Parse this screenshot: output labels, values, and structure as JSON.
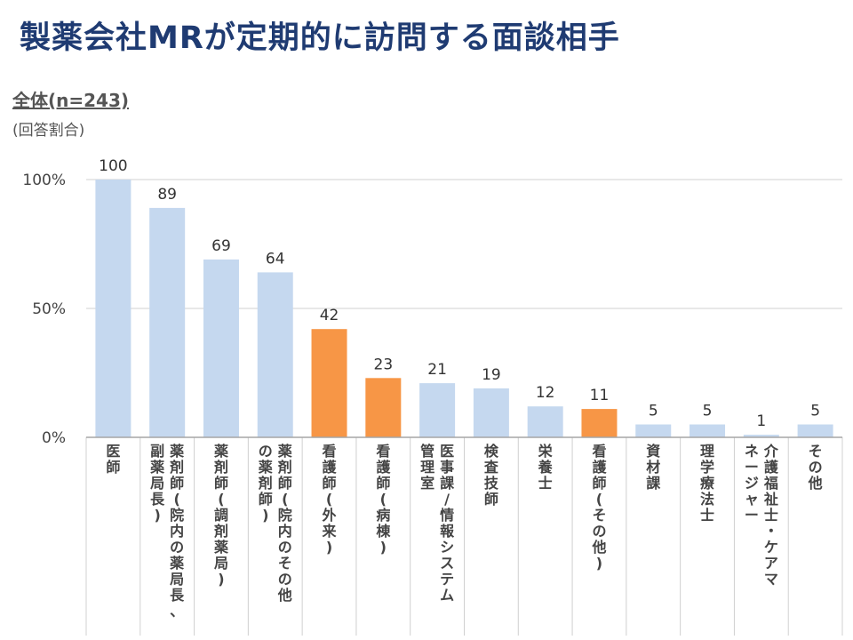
{
  "title": "製薬会社MRが定期的に訪問する面談相手",
  "subtitle": "全体(n=243)",
  "note": "(回答割合)",
  "colors": {
    "title": "#1f3b72",
    "bar_default": "#c5d8ef",
    "bar_highlight": "#f79646",
    "grid": "#d0d0d0",
    "axis": "#a6a6a6"
  },
  "chart_data": {
    "type": "bar",
    "categories": [
      "医師",
      "薬剤師(院内の薬局長、副薬局長)",
      "薬剤師(調剤薬局)",
      "薬剤師(院内のその他の薬剤師)",
      "看護師(外来)",
      "看護師(病棟)",
      "医事課/情報システム管理室",
      "検査技師",
      "栄養士",
      "看護師(その他)",
      "資材課",
      "理学療法士",
      "介護福祉士・ケアマネージャー",
      "その他"
    ],
    "category_lines": [
      [
        "医師"
      ],
      [
        "薬剤師(院内の薬局長、",
        "副薬局長)"
      ],
      [
        "薬剤師(調剤薬局)"
      ],
      [
        "薬剤師(院内のその他",
        "の薬剤師)"
      ],
      [
        "看護師(外来)"
      ],
      [
        "看護師(病棟)"
      ],
      [
        "医事課/情報システム",
        "管理室"
      ],
      [
        "検査技師"
      ],
      [
        "栄養士"
      ],
      [
        "看護師(その他)"
      ],
      [
        "資材課"
      ],
      [
        "理学療法士"
      ],
      [
        "介護福祉士・ケアマ",
        "ネージャー"
      ],
      [
        "その他"
      ]
    ],
    "values": [
      100,
      89,
      69,
      64,
      42,
      23,
      21,
      19,
      12,
      11,
      5,
      5,
      1,
      5
    ],
    "data_labels": [
      "100",
      "89",
      "69",
      "64",
      "42",
      "23",
      "21",
      "19",
      "12",
      "11",
      "5",
      "5",
      "1",
      "5"
    ],
    "highlighted": [
      false,
      false,
      false,
      false,
      true,
      true,
      false,
      false,
      false,
      true,
      false,
      false,
      false,
      false
    ],
    "yticks": [
      "0%",
      "50%",
      "100%"
    ],
    "ylim": [
      0,
      100
    ],
    "grid": true
  }
}
